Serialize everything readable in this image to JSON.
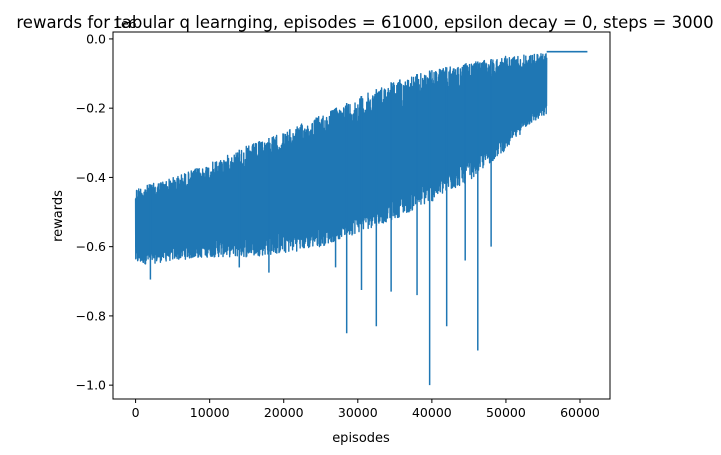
{
  "chart_data": {
    "type": "line",
    "title": "rewards for tabular q learnging, episodes = 61000, epsilon decay = 0, steps = 3000",
    "xlabel": "episodes",
    "ylabel": "rewards",
    "y_scale_note": "1e6",
    "xlim": [
      -3050,
      64050
    ],
    "ylim": [
      -1.04,
      0.02
    ],
    "x_ticks": [
      0,
      10000,
      20000,
      30000,
      40000,
      50000,
      60000
    ],
    "x_tick_labels": [
      "0",
      "10000",
      "20000",
      "30000",
      "40000",
      "50000",
      "60000"
    ],
    "y_ticks": [
      0.0,
      -0.2,
      -0.4,
      -0.6,
      -0.8,
      -1.0
    ],
    "y_tick_labels": [
      "0.0",
      "−0.2",
      "−0.4",
      "−0.6",
      "−0.8",
      "−1.0"
    ],
    "grid": false,
    "legend": "none",
    "series": [
      {
        "color": "#1f77b4",
        "envelope": {
          "x": [
            0,
            2000,
            5000,
            10000,
            15000,
            20000,
            25000,
            30000,
            35000,
            40000,
            45000,
            50000,
            53000,
            55500
          ],
          "upper": [
            -0.43,
            -0.42,
            -0.4,
            -0.36,
            -0.31,
            -0.27,
            -0.22,
            -0.17,
            -0.12,
            -0.09,
            -0.07,
            -0.05,
            -0.045,
            -0.04
          ],
          "lower": [
            -0.65,
            -0.65,
            -0.64,
            -0.63,
            -0.63,
            -0.62,
            -0.6,
            -0.56,
            -0.52,
            -0.47,
            -0.41,
            -0.32,
            -0.25,
            -0.22
          ]
        },
        "spikes": [
          {
            "x": 2000,
            "y": -0.695
          },
          {
            "x": 14000,
            "y": -0.66
          },
          {
            "x": 18000,
            "y": -0.675
          },
          {
            "x": 27000,
            "y": -0.66
          },
          {
            "x": 28500,
            "y": -0.85
          },
          {
            "x": 30500,
            "y": -0.725
          },
          {
            "x": 32500,
            "y": -0.83
          },
          {
            "x": 34500,
            "y": -0.73
          },
          {
            "x": 38000,
            "y": -0.74
          },
          {
            "x": 39700,
            "y": -1.0
          },
          {
            "x": 42000,
            "y": -0.83
          },
          {
            "x": 44500,
            "y": -0.64
          },
          {
            "x": 46200,
            "y": -0.9
          },
          {
            "x": 48000,
            "y": -0.6
          }
        ],
        "tail": {
          "x": [
            55500,
            61000
          ],
          "y": [
            -0.037,
            -0.037
          ]
        }
      }
    ]
  }
}
